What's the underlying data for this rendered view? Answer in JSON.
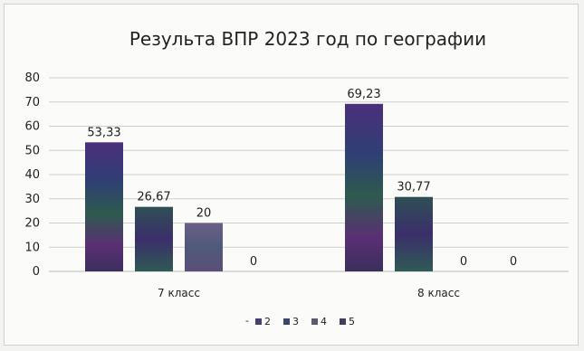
{
  "chart_data": {
    "type": "bar",
    "title": "Результа ВПР 2023 год по географии",
    "categories": [
      "7 класс",
      "8 класс"
    ],
    "series": [
      {
        "name": "2",
        "values": [
          53.33,
          69.23
        ],
        "labels": [
          "53,33",
          "69,23"
        ],
        "color": "#3d2f6e"
      },
      {
        "name": "3",
        "values": [
          26.67,
          30.77
        ],
        "labels": [
          "26,67",
          "30,77"
        ],
        "color": "#2f3e66"
      },
      {
        "name": "4",
        "values": [
          20,
          0
        ],
        "labels": [
          "20",
          "0"
        ],
        "color": "#55506e"
      },
      {
        "name": "5",
        "values": [
          0,
          0
        ],
        "labels": [
          "0",
          "0"
        ],
        "color": "#3a3a55"
      }
    ],
    "ylim": [
      0,
      80
    ],
    "yticks": [
      "0",
      "10",
      "20",
      "30",
      "40",
      "50",
      "60",
      "70",
      "80"
    ],
    "grid": true,
    "legend_position": "bottom",
    "legend_prefix": "-"
  }
}
